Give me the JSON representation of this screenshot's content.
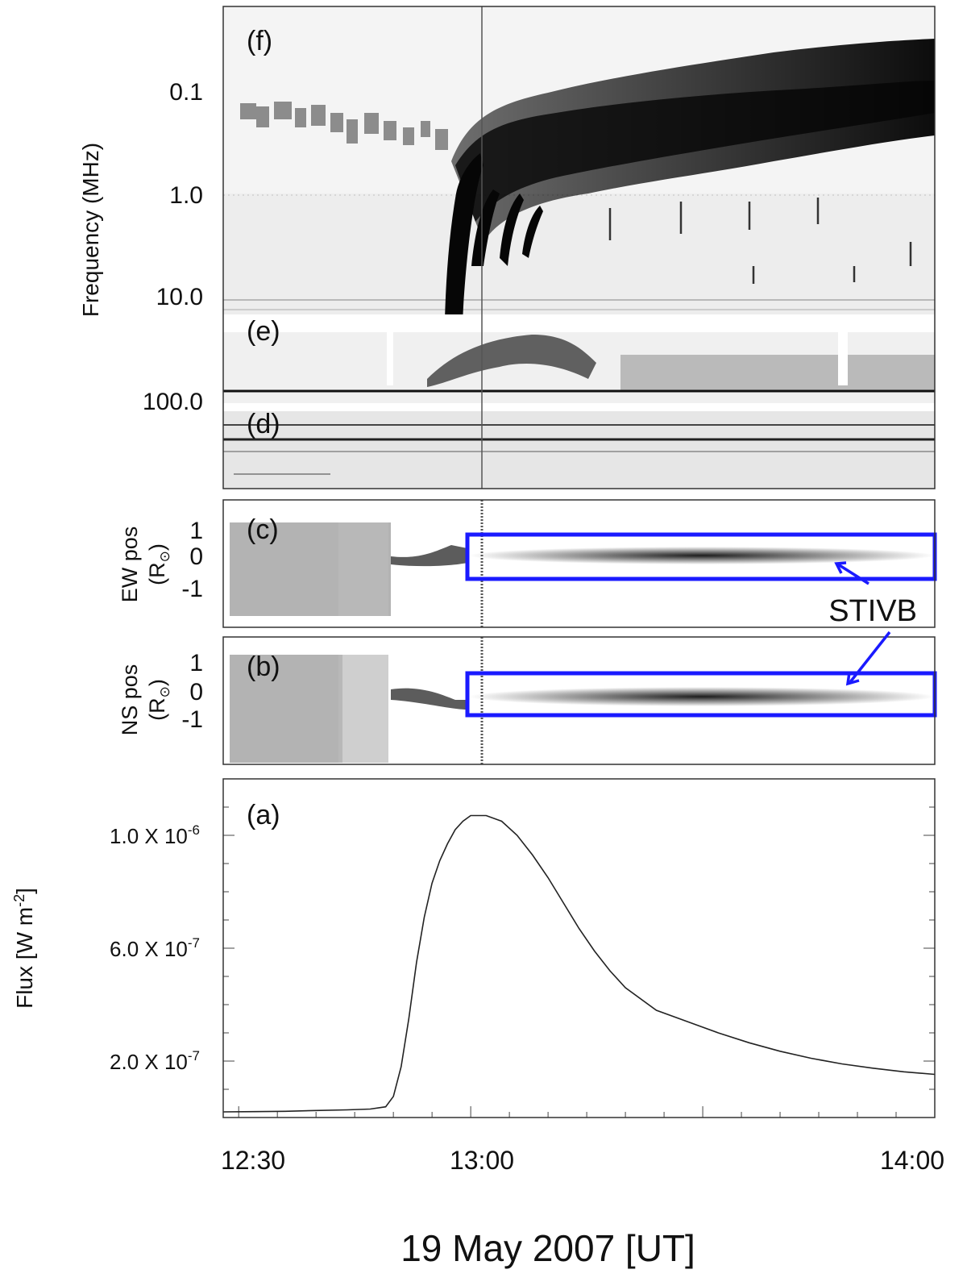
{
  "figure": {
    "xlabel": "19 May 2007 [UT]",
    "x_ticks": [
      "12:30",
      "13:00",
      "14:00"
    ],
    "annotation": "STIVB",
    "colors": {
      "box": "#1a1aff",
      "line": "#222222"
    }
  },
  "panels": {
    "f": {
      "label": "(f)"
    },
    "e": {
      "label": "(e)"
    },
    "d": {
      "label": "(d)"
    },
    "c": {
      "label": "(c)",
      "ylabel_line1": "EW pos",
      "ylabel_line2": "(R",
      "ylabel_sub": "⊙",
      "ylabel_close": ")",
      "ticks": [
        "1",
        "0",
        "-1"
      ]
    },
    "b": {
      "label": "(b)",
      "ylabel_line1": "NS pos",
      "ylabel_line2": "(R",
      "ylabel_sub": "⊙",
      "ylabel_close": ")",
      "ticks": [
        "1",
        "0",
        "-1"
      ]
    },
    "a": {
      "label": "(a)"
    }
  },
  "spectrogram": {
    "ylabel": "Frequency (MHz)",
    "y_ticks": [
      "0.1",
      "1.0",
      "10.0",
      "100.0"
    ],
    "colormap": "inverted grayscale"
  },
  "chart_data": {
    "type": "line",
    "title": "",
    "xlabel": "19 May 2007 [UT]",
    "ylabel": "Flux [W m-2]",
    "ylabel_text": "Flux [W m",
    "ylabel_sup": "-2",
    "ylabel_close": "]",
    "y_ticks": [
      {
        "value": 1e-06,
        "mant": "1.0 X 10",
        "exp": "-6"
      },
      {
        "value": 6e-07,
        "mant": "6.0 X 10",
        "exp": "-7"
      },
      {
        "value": 2e-07,
        "mant": "2.0 X 10",
        "exp": "-7"
      }
    ],
    "xlim": [
      "12:28",
      "14:00"
    ],
    "ylim": [
      0.0,
      1.2e-06
    ],
    "grid": false,
    "legend": "none",
    "series": [
      {
        "x": [
          "12:28",
          "12:32",
          "12:36",
          "12:40",
          "12:44",
          "12:47",
          "12:49",
          "12:50",
          "12:51",
          "12:52",
          "12:53",
          "12:54",
          "12:55",
          "12:56",
          "12:57",
          "12:58",
          "12:59",
          "13:00",
          "13:02",
          "13:04",
          "13:06",
          "13:08",
          "13:10",
          "13:12",
          "13:14",
          "13:16",
          "13:18",
          "13:20",
          "13:24",
          "13:28",
          "13:32",
          "13:36",
          "13:40",
          "13:44",
          "13:48",
          "13:52",
          "13:56",
          "14:00"
        ],
        "y": [
          2e-08,
          2.1e-08,
          2.2e-08,
          2.5e-08,
          2.7e-08,
          3e-08,
          3.8e-08,
          7.5e-08,
          1.8e-07,
          3.5e-07,
          5.5e-07,
          7.1e-07,
          8.3e-07,
          9.1e-07,
          9.7e-07,
          1.02e-06,
          1.05e-06,
          1.07e-06,
          1.07e-06,
          1.05e-06,
          1e-06,
          9.3e-07,
          8.5e-07,
          7.6e-07,
          6.7e-07,
          5.9e-07,
          5.2e-07,
          4.6e-07,
          3.8e-07,
          3.4e-07,
          3e-07,
          2.65e-07,
          2.35e-07,
          2.1e-07,
          1.9e-07,
          1.75e-07,
          1.62e-07,
          1.53e-07
        ]
      }
    ]
  }
}
